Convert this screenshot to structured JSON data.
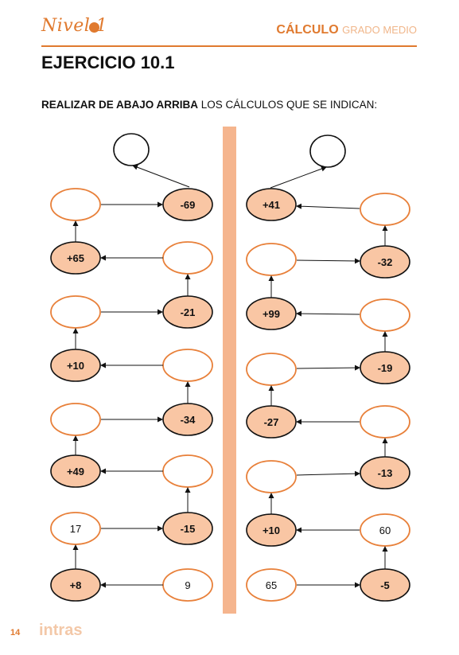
{
  "header": {
    "logo_text": "Nivel 1",
    "section": "CÁLCULO",
    "subsection": "GRADO MEDIO"
  },
  "title": "EJERCICIO 10.1",
  "instruction": {
    "bold": "REALIZAR DE ABAJO ARRIBA",
    "rest": " LOS CÁLCULOS QUE SE INDICAN:"
  },
  "footer": {
    "page": "14",
    "brand": "intras"
  },
  "colors": {
    "accent": "#e07a2f",
    "fill": "#f9c6a4",
    "divider": "#f5b58e",
    "empty_stroke": "#e8803a"
  },
  "left_chain": {
    "start": "9",
    "result_after_first": "17",
    "operations": [
      "+8",
      "-15",
      "+49",
      "-34",
      "+10",
      "-21",
      "+65",
      "-69"
    ]
  },
  "right_chain": {
    "start": "65",
    "result_after_first": "60",
    "operations": [
      "-5",
      "+10",
      "-13",
      "-27",
      "-19",
      "+99",
      "-32",
      "+41"
    ]
  }
}
